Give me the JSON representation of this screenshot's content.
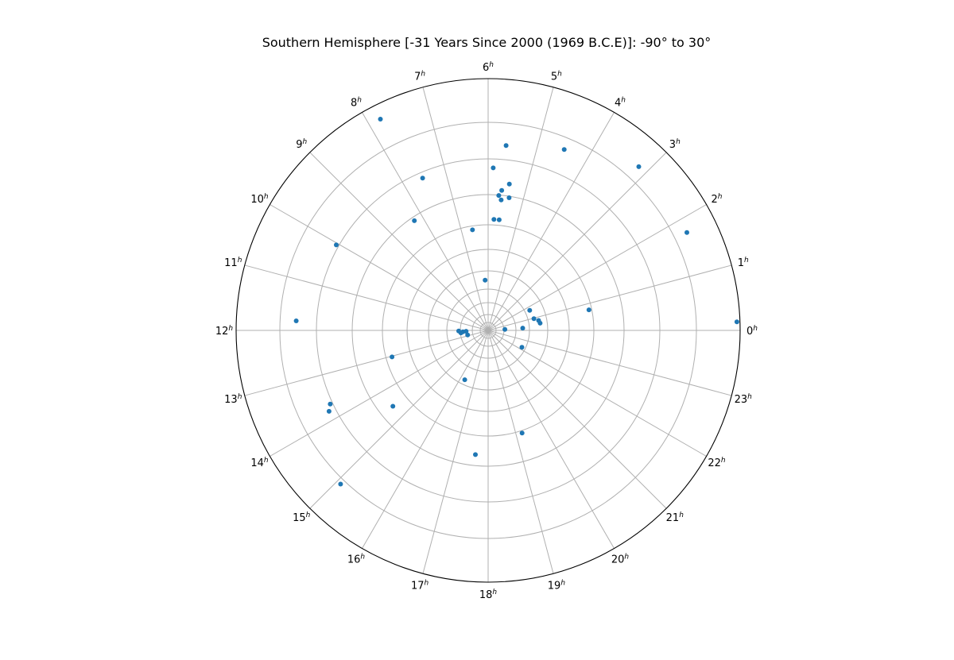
{
  "chart_data": {
    "type": "scatter",
    "projection": "polar",
    "title": "Southern Hemisphere [-31 Years Since 2000 (1969 B.C.E)]: -90° to 30°",
    "angular_axis": {
      "unit": "h",
      "ticks": [
        "0",
        "1",
        "2",
        "3",
        "4",
        "5",
        "6",
        "7",
        "8",
        "9",
        "10",
        "11",
        "12",
        "13",
        "14",
        "15",
        "16",
        "17",
        "18",
        "19",
        "20",
        "21",
        "22",
        "23"
      ],
      "direction": "counterclockwise",
      "zero_position": "right"
    },
    "radial_axis": {
      "range": [
        -90,
        30
      ],
      "tick_labels_shown": false
    },
    "grid": true,
    "legend": "none",
    "marker_color": "#1f77b4",
    "points": [
      {
        "ra": 0.13,
        "dec": 28.5
      },
      {
        "ra": 0.77,
        "dec": -41.0
      },
      {
        "ra": 0.53,
        "dec": -65.0
      },
      {
        "ra": 0.25,
        "dec": -73.5
      },
      {
        "ra": 0.74,
        "dec": -65.5
      },
      {
        "ra": 0.96,
        "dec": -67.5
      },
      {
        "ra": 1.72,
        "dec": -68.0
      },
      {
        "ra": 0.22,
        "dec": -82.0
      },
      {
        "ra": 1.75,
        "dec": 15.5
      },
      {
        "ra": 3.16,
        "dec": 16.0
      },
      {
        "ra": 4.48,
        "dec": 3.5
      },
      {
        "ra": 5.63,
        "dec": -1.5
      },
      {
        "ra": 5.88,
        "dec": -12.5
      },
      {
        "ra": 5.62,
        "dec": -27.5
      },
      {
        "ra": 5.4,
        "dec": -26.0
      },
      {
        "ra": 5.63,
        "dec": -23.0
      },
      {
        "ra": 5.45,
        "dec": -19.5
      },
      {
        "ra": 5.7,
        "dec": -25.5
      },
      {
        "ra": 5.62,
        "dec": -37.0
      },
      {
        "ra": 5.8,
        "dec": -37.0
      },
      {
        "ra": 6.59,
        "dec": -41.5
      },
      {
        "ra": 6.23,
        "dec": -66.0
      },
      {
        "ra": 7.8,
        "dec": 23.0
      },
      {
        "ra": 7.55,
        "dec": -11.0
      },
      {
        "ra": 8.26,
        "dec": -27.0
      },
      {
        "ra": 10.04,
        "dec": -7.0
      },
      {
        "ra": 11.81,
        "dec": 1.5
      },
      {
        "ra": 12.2,
        "dec": -78.0
      },
      {
        "ra": 12.07,
        "dec": -76.0
      },
      {
        "ra": 12.35,
        "dec": -77.0
      },
      {
        "ra": 12.15,
        "dec": -79.5
      },
      {
        "ra": 12.85,
        "dec": -80.0
      },
      {
        "ra": 13.03,
        "dec": -42.5
      },
      {
        "ra": 13.8,
        "dec": -5.0
      },
      {
        "ra": 13.67,
        "dec": -7.0
      },
      {
        "ra": 15.08,
        "dec": 11.5
      },
      {
        "ra": 14.57,
        "dec": -32.0
      },
      {
        "ra": 16.31,
        "dec": -64.0
      },
      {
        "ra": 17.61,
        "dec": -30.5
      },
      {
        "ra": 19.22,
        "dec": -38.5
      },
      {
        "ra": 22.23,
        "dec": -72.0
      }
    ]
  }
}
